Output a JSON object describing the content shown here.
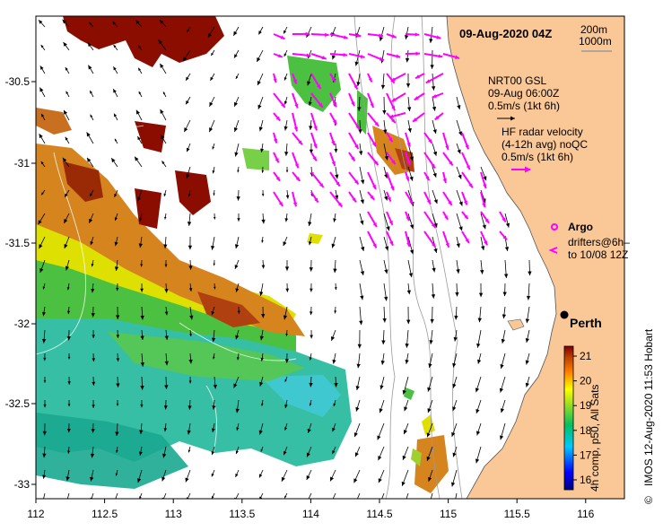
{
  "map": {
    "title": "09-Aug-2020 04Z",
    "depth_labels": [
      "200m",
      "1000m"
    ],
    "lon_ticks": [
      "112",
      "112.5",
      "113",
      "113.5",
      "114",
      "114.5",
      "115",
      "115.5",
      "116"
    ],
    "lat_ticks": [
      "-30.5",
      "-31",
      "-31.5",
      "-32",
      "-32.5",
      "-33"
    ],
    "city": "Perth",
    "current_legend": {
      "model_lines": [
        "NRT00 GSL",
        "09-Aug 06:00Z",
        "0.5m/s (1kt 6h)"
      ],
      "radar_lines": [
        "HF radar velocity",
        "(4-12h avg) noQC",
        "0.5m/s (1kt 6h)"
      ],
      "model_arrow_color": "#000000",
      "radar_arrow_color": "#ff00ff"
    },
    "argo_label": "Argo",
    "drifter_lines": [
      "drifters@6h–",
      "to 10/08 12Z"
    ],
    "colorbar": {
      "ticks": [
        "16",
        "17",
        "18",
        "19",
        "20",
        "21"
      ],
      "min": 15.6,
      "max": 21.4,
      "label": "4h comp, p50, All Sats"
    },
    "credit": "IMOS 12-Aug-2020 11:53 Hobart",
    "copyright_symbol": "©",
    "colors": {
      "land": "#fac796",
      "radar": "#ff00ff",
      "warm": "#8b0d00",
      "contour": "#9a9a9a"
    }
  }
}
